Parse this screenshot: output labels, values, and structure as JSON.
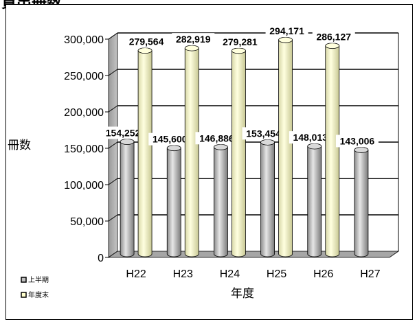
{
  "page": {
    "title": "貸出冊数"
  },
  "chart_data": {
    "type": "bar",
    "categories": [
      "H22",
      "H23",
      "H24",
      "H25",
      "H26",
      "H27"
    ],
    "series": [
      {
        "name": "上半期",
        "values": [
          154252,
          145600,
          146886,
          153454,
          148013,
          143006
        ],
        "color": "#bfbfbf"
      },
      {
        "name": "年度末",
        "values": [
          279564,
          282919,
          279281,
          294171,
          286127,
          null
        ],
        "color": "#ffffcc"
      }
    ],
    "data_labels": {
      "上半期": [
        "154,252",
        "145,600",
        "146,886",
        "153,454",
        "148,013",
        "143,006"
      ],
      "年度末": [
        "279,564",
        "282,919",
        "279,281",
        "294,171",
        "286,127",
        ""
      ]
    },
    "xlabel": "年度",
    "ylabel": "冊数",
    "ylim": [
      0,
      300000
    ],
    "yticks": [
      "0",
      "50,000",
      "100,000",
      "150,000",
      "200,000",
      "250,000",
      "300,000"
    ],
    "grid": true,
    "legend_position": "bottom-left",
    "style": "3d-cylinder"
  }
}
